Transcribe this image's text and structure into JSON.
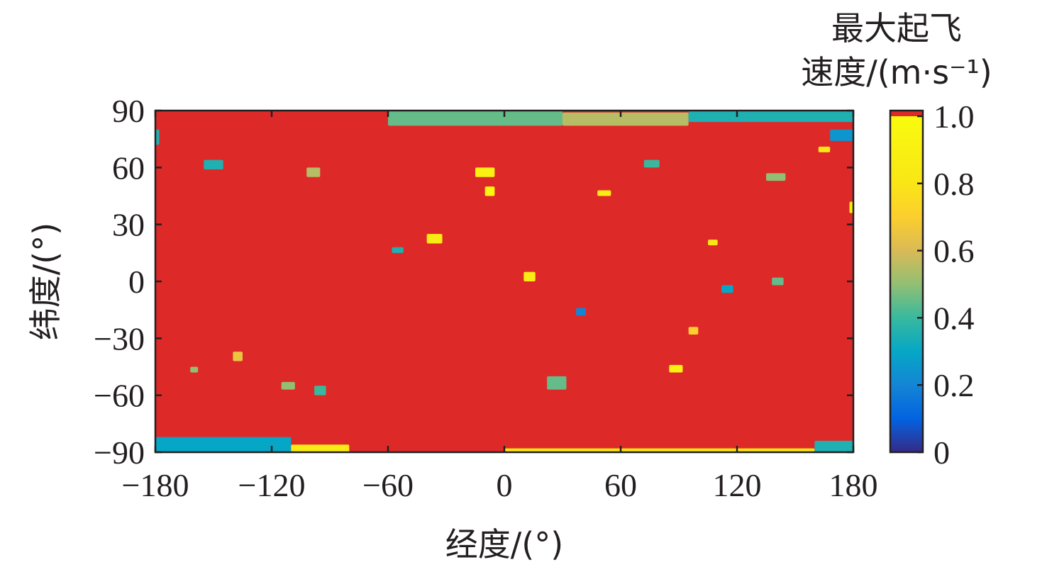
{
  "chart_data": {
    "type": "heatmap",
    "xlabel": "经度/(°)",
    "ylabel": "纬度/(°)",
    "colorbar_title": [
      "最大起飞",
      "速度/(m·s⁻¹)"
    ],
    "xlim": [
      -180,
      180
    ],
    "ylim": [
      -90,
      90
    ],
    "x_ticks": [
      -180,
      -120,
      -60,
      0,
      60,
      120,
      180
    ],
    "y_ticks": [
      90,
      60,
      30,
      0,
      -30,
      -60,
      -90
    ],
    "x_tick_labels": [
      "−180",
      "−120",
      "−60",
      "0",
      "60",
      "120",
      "180"
    ],
    "y_tick_labels": [
      "90",
      "60",
      "30",
      "0",
      "−30",
      "−60",
      "−90"
    ],
    "colorbar": {
      "range": [
        0,
        1.0
      ],
      "ticks": [
        1.0,
        0.8,
        0.6,
        0.4,
        0.2,
        0
      ],
      "tick_labels": [
        "1.0",
        "0.8",
        "0.6",
        "0.4",
        "0.2",
        "0"
      ],
      "over_color": "#dd2a28",
      "colormap": "parula"
    },
    "background_value": 1.0,
    "regions": [
      {
        "lon": [
          -180,
          -178
        ],
        "lat": [
          72,
          80
        ],
        "value": 0.35
      },
      {
        "lon": [
          -60,
          30
        ],
        "lat": [
          82,
          90
        ],
        "value": 0.45
      },
      {
        "lon": [
          30,
          95
        ],
        "lat": [
          82,
          89
        ],
        "value": 0.55
      },
      {
        "lon": [
          95,
          180
        ],
        "lat": [
          84,
          90
        ],
        "value": 0.35
      },
      {
        "lon": [
          168,
          180
        ],
        "lat": [
          74,
          80
        ],
        "value": 0.25
      },
      {
        "lon": [
          -180,
          -110
        ],
        "lat": [
          -90,
          -82
        ],
        "value": 0.3
      },
      {
        "lon": [
          -110,
          -80
        ],
        "lat": [
          -90,
          -86
        ],
        "value": 0.85
      },
      {
        "lon": [
          0,
          160
        ],
        "lat": [
          -90,
          -88
        ],
        "value": 0.8
      },
      {
        "lon": [
          160,
          180
        ],
        "lat": [
          -90,
          -84
        ],
        "value": 0.35
      },
      {
        "lon": [
          -155,
          -145
        ],
        "lat": [
          59,
          64
        ],
        "value": 0.35
      },
      {
        "lon": [
          -15,
          -5
        ],
        "lat": [
          55,
          60
        ],
        "value": 0.9
      },
      {
        "lon": [
          -98,
          -92
        ],
        "lat": [
          -60,
          -55
        ],
        "value": 0.4
      },
      {
        "lon": [
          22,
          32
        ],
        "lat": [
          -57,
          -50
        ],
        "value": 0.45
      },
      {
        "lon": [
          135,
          145
        ],
        "lat": [
          53,
          57
        ],
        "value": 0.5
      },
      {
        "lon": [
          -40,
          -32
        ],
        "lat": [
          20,
          25
        ],
        "value": 0.85
      },
      {
        "lon": [
          -140,
          -135
        ],
        "lat": [
          -42,
          -37
        ],
        "value": 0.65
      },
      {
        "lon": [
          -115,
          -108
        ],
        "lat": [
          -57,
          -53
        ],
        "value": 0.5
      },
      {
        "lon": [
          85,
          92
        ],
        "lat": [
          -48,
          -44
        ],
        "value": 0.9
      },
      {
        "lon": [
          95,
          100
        ],
        "lat": [
          -28,
          -24
        ],
        "value": 0.7
      },
      {
        "lon": [
          37,
          42
        ],
        "lat": [
          -18,
          -14
        ],
        "value": 0.2
      },
      {
        "lon": [
          72,
          80
        ],
        "lat": [
          60,
          64
        ],
        "value": 0.4
      },
      {
        "lon": [
          -102,
          -95
        ],
        "lat": [
          55,
          60
        ],
        "value": 0.55
      },
      {
        "lon": [
          -10,
          -5
        ],
        "lat": [
          45,
          50
        ],
        "value": 0.95
      },
      {
        "lon": [
          105,
          110
        ],
        "lat": [
          19,
          22
        ],
        "value": 0.8
      },
      {
        "lon": [
          48,
          55
        ],
        "lat": [
          45,
          48
        ],
        "value": 0.85
      },
      {
        "lon": [
          178,
          180
        ],
        "lat": [
          36,
          42
        ],
        "value": 0.9
      },
      {
        "lon": [
          -58,
          -52
        ],
        "lat": [
          15,
          18
        ],
        "value": 0.35
      },
      {
        "lon": [
          10,
          16
        ],
        "lat": [
          0,
          5
        ],
        "value": 0.85
      },
      {
        "lon": [
          112,
          118
        ],
        "lat": [
          -6,
          -2
        ],
        "value": 0.3
      },
      {
        "lon": [
          138,
          144
        ],
        "lat": [
          -2,
          2
        ],
        "value": 0.45
      },
      {
        "lon": [
          162,
          168
        ],
        "lat": [
          68,
          71
        ],
        "value": 0.8
      },
      {
        "lon": [
          -162,
          -158
        ],
        "lat": [
          -48,
          -45
        ],
        "value": 0.5
      }
    ]
  }
}
